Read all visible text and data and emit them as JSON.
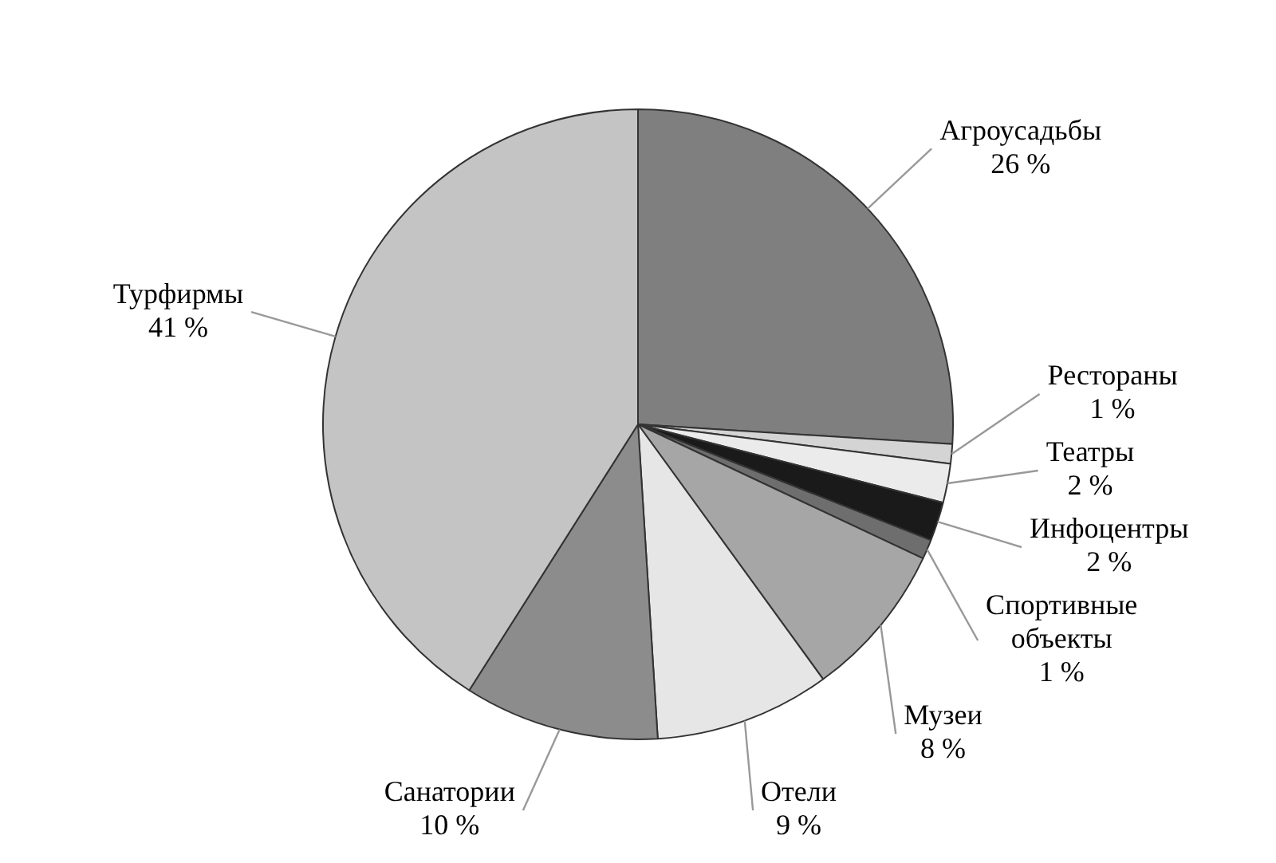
{
  "chart_data": {
    "type": "pie",
    "categories": [
      "Агроусадьбы",
      "Рестораны",
      "Театры",
      "Инфоцентры",
      "Спортивные объекты",
      "Музеи",
      "Отели",
      "Санатории",
      "Турфирмы"
    ],
    "values": [
      26,
      1,
      2,
      2,
      1,
      8,
      9,
      10,
      41
    ],
    "value_labels": [
      "26 %",
      "1 %",
      "2 %",
      "2 %",
      "1 %",
      "8 %",
      "9 %",
      "10 %",
      "41 %"
    ],
    "colors": [
      "#7f7f7f",
      "#d4d4d4",
      "#ebebeb",
      "#1a1a1a",
      "#6e6e6e",
      "#a6a6a6",
      "#e6e6e6",
      "#8c8c8c",
      "#c4c4c4"
    ],
    "legend": false
  }
}
